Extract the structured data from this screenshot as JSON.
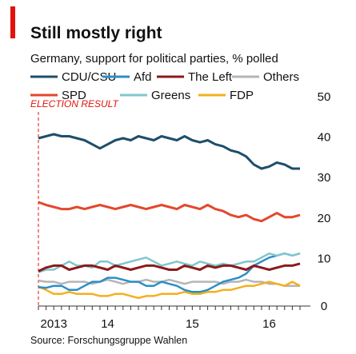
{
  "chart_data": {
    "type": "line",
    "title": "Still mostly right",
    "subtitle": "Germany, support for political parties, % polled",
    "annotation": "ELECTION RESULT",
    "source": "Source: Forschungsgruppe Wahlen",
    "categories": [
      null,
      null,
      "2013",
      null,
      null,
      null,
      null,
      null,
      null,
      "14",
      null,
      null,
      null,
      null,
      null,
      null,
      null,
      null,
      null,
      null,
      "15",
      null,
      null,
      null,
      null,
      null,
      null,
      null,
      null,
      null,
      "16",
      null,
      null,
      null,
      null
    ],
    "series": [
      {
        "name": "CDU/CSU",
        "color": "#1d4e6b",
        "values": [
          41.5,
          42,
          42.5,
          42,
          42,
          41.5,
          41,
          40,
          39,
          40,
          41,
          41.5,
          41,
          42,
          41.5,
          41,
          42,
          41.5,
          41,
          42,
          41,
          40.5,
          41,
          40,
          39.5,
          38.5,
          38,
          37,
          35,
          34,
          34.5,
          35.5,
          35,
          34,
          34
        ]
      },
      {
        "name": "Afd",
        "color": "#2a8fc7",
        "values": [
          4.7,
          4.5,
          5,
          5,
          4,
          4,
          5,
          6,
          6,
          7,
          7,
          6.5,
          6,
          6,
          5,
          5,
          6,
          5.5,
          5,
          4,
          3.5,
          3.5,
          4,
          5,
          6,
          6.5,
          7,
          8,
          10,
          11,
          12,
          12.5,
          13,
          12.5,
          13
        ]
      },
      {
        "name": "The Left",
        "color": "#8b1a1a",
        "values": [
          8.6,
          9.5,
          10,
          10,
          9,
          9.5,
          10,
          10,
          9.5,
          9,
          10,
          9.5,
          9,
          9.5,
          10,
          10,
          9.5,
          9,
          9,
          10,
          9.5,
          9,
          10,
          9.5,
          10,
          10,
          9.5,
          9,
          10,
          9.5,
          9,
          9.5,
          10,
          10,
          10.5
        ]
      },
      {
        "name": "Others",
        "color": "#b5b5b5",
        "values": [
          6.3,
          6,
          6,
          5.5,
          6,
          6,
          6,
          5.5,
          6,
          6.5,
          6,
          5.5,
          6,
          6,
          6.5,
          6,
          6,
          6.5,
          6,
          5.5,
          6,
          6,
          6,
          6,
          5.5,
          6,
          6,
          6.5,
          6,
          6,
          5.5,
          5.5,
          5,
          5,
          5
        ]
      },
      {
        "name": "SPD",
        "color": "#e4472d",
        "values": [
          25.7,
          25,
          24.5,
          24,
          24,
          24.5,
          24,
          24.5,
          25,
          24.5,
          24,
          24.5,
          25,
          24.5,
          24,
          24.5,
          25,
          24.5,
          24,
          25,
          24.5,
          24,
          25,
          24,
          23.5,
          22.5,
          22,
          22.5,
          21.5,
          21,
          22,
          23,
          22,
          22,
          22.5
        ]
      },
      {
        "name": "Greens",
        "color": "#7fc6cc",
        "values": [
          8.4,
          9,
          9,
          10,
          11,
          10,
          10,
          9.5,
          11,
          11,
          10,
          10.5,
          11,
          11.5,
          12,
          11,
          10,
          10.5,
          11,
          10.5,
          10,
          11,
          10.5,
          10,
          10.5,
          10,
          10.5,
          11,
          11,
          12,
          13,
          12.5,
          13,
          12.5,
          13
        ]
      },
      {
        "name": "FDP",
        "color": "#f2b01e",
        "values": [
          4.8,
          4,
          3,
          3,
          3.5,
          3,
          3,
          3,
          2.5,
          2.5,
          3,
          3,
          2.5,
          2,
          2.5,
          2.5,
          3,
          3,
          3,
          3.5,
          3,
          3,
          3.5,
          3.5,
          4,
          4,
          4.5,
          5,
          5,
          5.5,
          6,
          5.5,
          5,
          6,
          5
        ]
      }
    ],
    "ylim": [
      0,
      50
    ],
    "yticks": [
      0,
      10,
      20,
      30,
      40,
      50
    ],
    "grid": false
  }
}
